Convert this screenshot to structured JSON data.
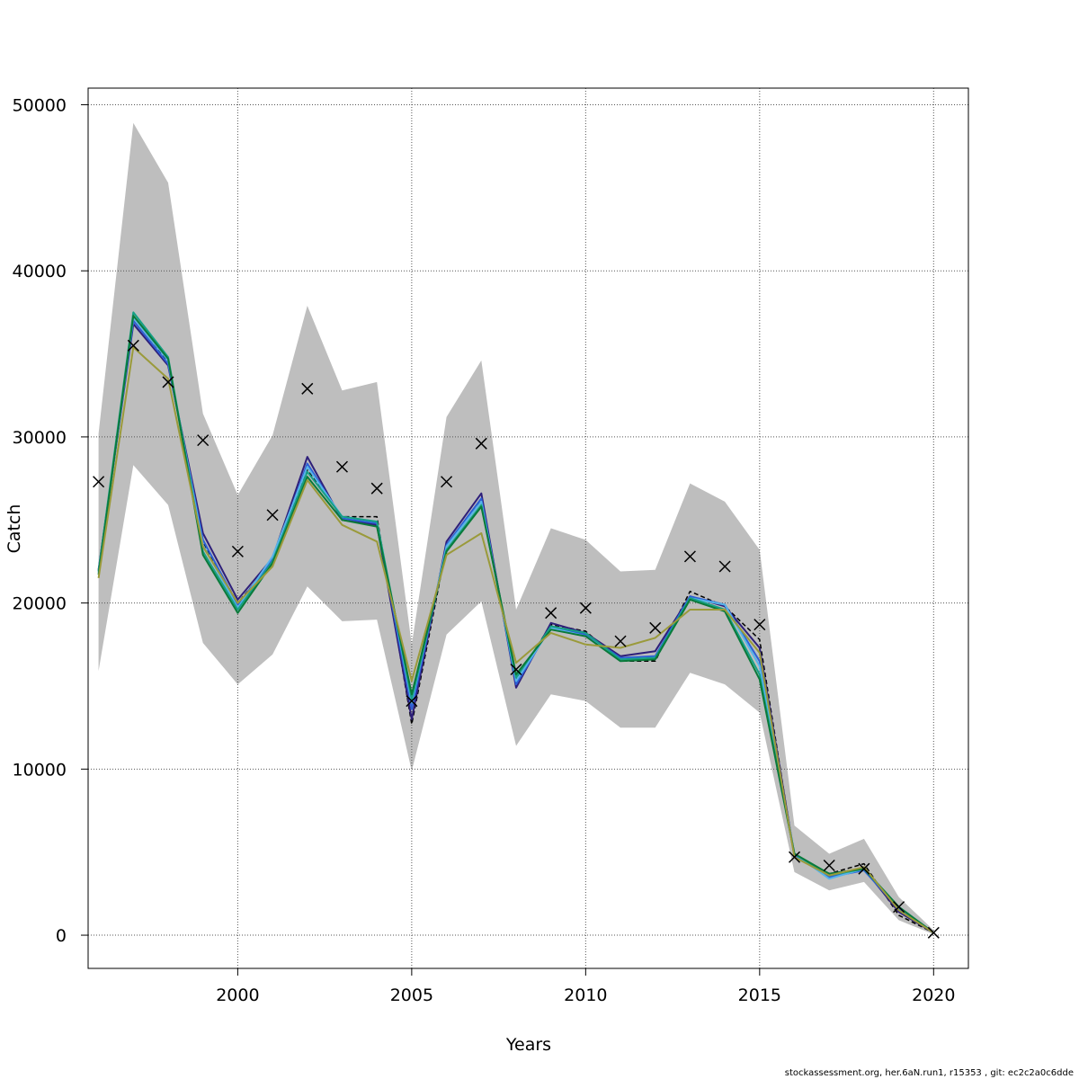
{
  "chart_data": {
    "type": "line",
    "title": "",
    "xlabel": "Years",
    "ylabel": "Catch",
    "xlim": [
      1995.7,
      2021.0
    ],
    "ylim": [
      -2000,
      51000
    ],
    "x_ticks": [
      2000,
      2005,
      2010,
      2015,
      2020
    ],
    "y_ticks": [
      0,
      10000,
      20000,
      30000,
      40000,
      50000
    ],
    "x_tick_labels": [
      "2000",
      "2005",
      "2010",
      "2015",
      "2020"
    ],
    "y_tick_labels": [
      "0",
      "10000",
      "20000",
      "30000",
      "40000",
      "50000"
    ],
    "grid": true,
    "band_color": "#bebebe",
    "band": {
      "x": [
        1996,
        1997,
        1998,
        1999,
        2000,
        2001,
        2002,
        2003,
        2004,
        2005,
        2006,
        2007,
        2008,
        2009,
        2010,
        2011,
        2012,
        2013,
        2014,
        2015,
        2016,
        2017,
        2018,
        2019,
        2020
      ],
      "upper": [
        30200,
        48900,
        45300,
        31400,
        26500,
        30100,
        37900,
        32800,
        33300,
        17500,
        31200,
        34600,
        19600,
        24500,
        23800,
        21900,
        22000,
        27200,
        26100,
        23200,
        6600,
        4900,
        5800,
        2300,
        300
      ],
      "lower": [
        15900,
        28300,
        25900,
        17600,
        15100,
        16900,
        21000,
        18900,
        19000,
        9900,
        18100,
        20100,
        11400,
        14500,
        14100,
        12500,
        12500,
        15800,
        15100,
        13400,
        3800,
        2700,
        3200,
        900,
        50
      ]
    },
    "series": [
      {
        "name": "run-black-dashed",
        "color": "#000000",
        "dashed": true,
        "values": [
          21800,
          37300,
          34500,
          23600,
          20000,
          22500,
          28000,
          25200,
          25200,
          12700,
          23400,
          26200,
          15400,
          18700,
          18300,
          16500,
          16500,
          20700,
          19800,
          17800,
          4700,
          3700,
          4300,
          1200,
          150
        ]
      },
      {
        "name": "run-indigo",
        "color": "#2e1f7a",
        "dashed": false,
        "values": [
          22000,
          36800,
          34300,
          24200,
          20200,
          22700,
          28800,
          25000,
          24700,
          13000,
          23700,
          26600,
          14900,
          18800,
          18200,
          16800,
          17100,
          20400,
          19800,
          17300,
          4800,
          3700,
          4000,
          1400,
          150
        ]
      },
      {
        "name": "run-blue",
        "color": "#2c5fd6",
        "dashed": false,
        "values": [
          21900,
          37000,
          34400,
          23800,
          19900,
          22600,
          28400,
          25100,
          24800,
          13600,
          23500,
          26300,
          15100,
          18600,
          18100,
          16700,
          16800,
          20400,
          19900,
          16500,
          4800,
          3500,
          3900,
          1600,
          150
        ]
      },
      {
        "name": "run-skyblue",
        "color": "#56b4e9",
        "dashed": false,
        "values": [
          21800,
          37200,
          34600,
          23500,
          19700,
          22800,
          28200,
          25200,
          24900,
          14000,
          23400,
          26100,
          15300,
          18500,
          18000,
          16600,
          16700,
          20300,
          19900,
          16200,
          4900,
          3400,
          4000,
          1700,
          150
        ]
      },
      {
        "name": "run-teal",
        "color": "#16a085",
        "dashed": false,
        "values": [
          21900,
          37500,
          34800,
          23100,
          19600,
          22500,
          27900,
          25200,
          24900,
          14200,
          23200,
          25900,
          15500,
          18600,
          18200,
          16600,
          16700,
          20300,
          19600,
          15700,
          4900,
          3600,
          4000,
          1700,
          150
        ]
      },
      {
        "name": "run-green",
        "color": "#0a7a3a",
        "dashed": false,
        "values": [
          21700,
          37300,
          34700,
          22900,
          19400,
          22400,
          27600,
          25000,
          24600,
          14500,
          23100,
          25800,
          15700,
          18400,
          18000,
          16500,
          16600,
          20200,
          19500,
          15400,
          4900,
          3700,
          4000,
          1700,
          150
        ]
      },
      {
        "name": "run-olive",
        "color": "#9a9a3a",
        "dashed": false,
        "values": [
          21500,
          35400,
          33500,
          23400,
          20000,
          22200,
          27400,
          24700,
          23700,
          15300,
          22900,
          24200,
          16400,
          18200,
          17500,
          17300,
          17900,
          19600,
          19600,
          17000,
          4700,
          3600,
          4100,
          1500,
          150
        ]
      }
    ],
    "observed": {
      "marker": "x",
      "x": [
        1996,
        1997,
        1998,
        1999,
        2000,
        2001,
        2002,
        2003,
        2004,
        2005,
        2006,
        2007,
        2008,
        2009,
        2010,
        2011,
        2012,
        2013,
        2014,
        2015,
        2016,
        2017,
        2018,
        2019,
        2020
      ],
      "values": [
        27300,
        35500,
        33300,
        29800,
        23100,
        25300,
        32900,
        28200,
        26900,
        14100,
        27300,
        29600,
        16000,
        19400,
        19700,
        17700,
        18500,
        22800,
        22200,
        18700,
        4700,
        4200,
        4000,
        1700,
        150
      ]
    }
  },
  "footer_text": "stockassessment.org, her.6aN.run1, r15353 , git: ec2c2a0c6dde"
}
